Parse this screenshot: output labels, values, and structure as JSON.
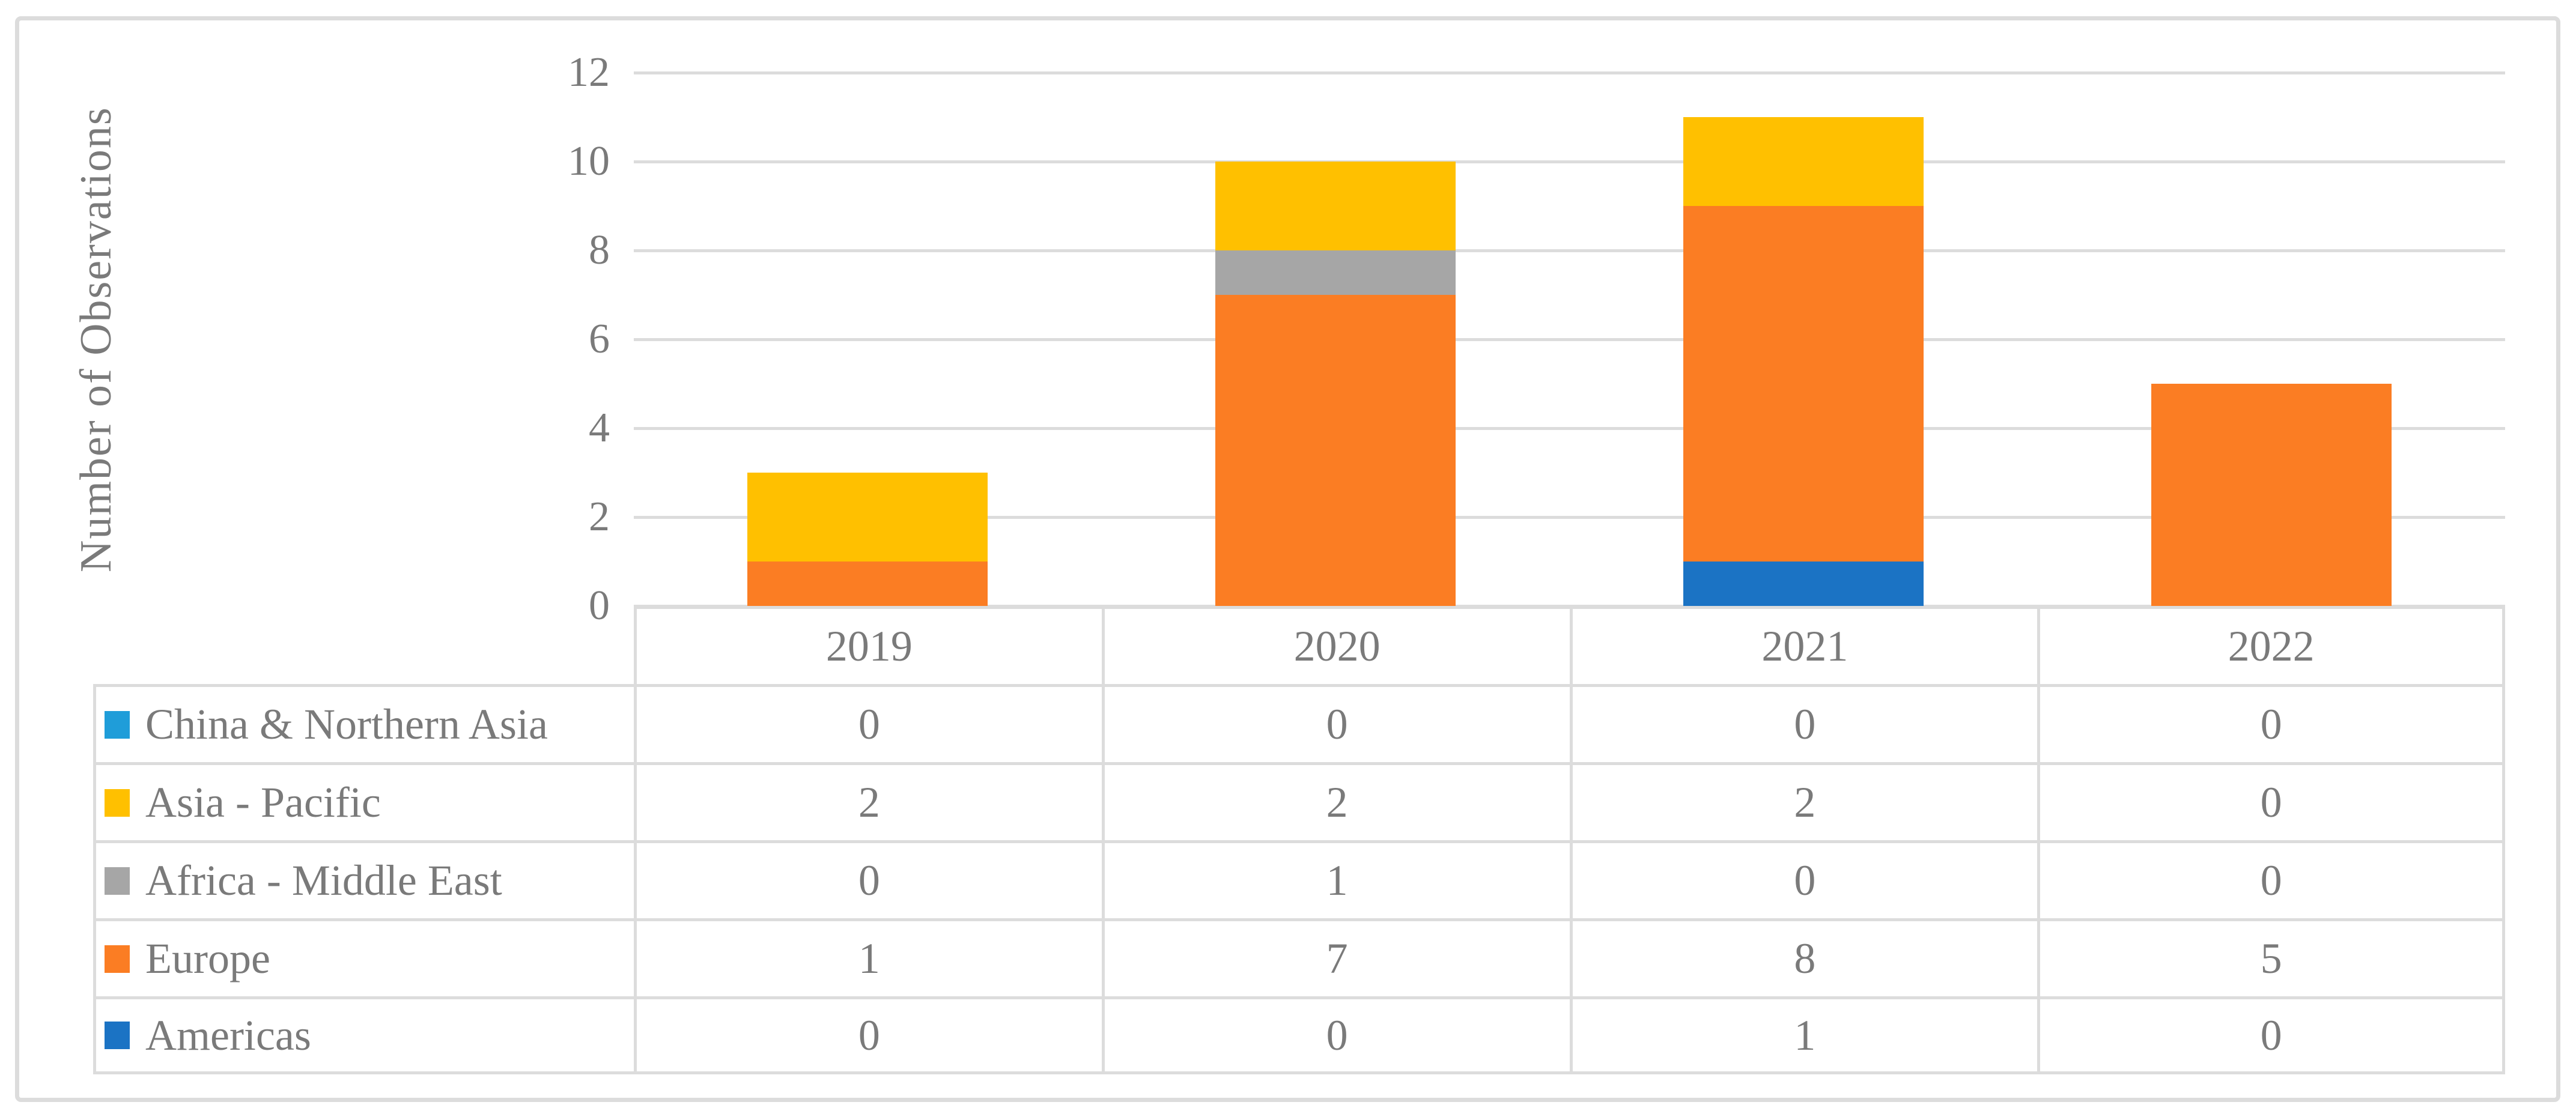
{
  "y_axis": {
    "title": "Number of Observations",
    "tick_labels": [
      "0",
      "2",
      "4",
      "6",
      "8",
      "10",
      "12"
    ],
    "min": 0,
    "max": 12,
    "step": 2
  },
  "colors": {
    "china_northern_asia": "#1F9DD9",
    "asia_pacific": "#FFC000",
    "africa_middle_east": "#A6A6A6",
    "europe": "#FB7D23",
    "americas": "#1B73C4",
    "gridline": "#DCDCDC",
    "frame_border": "#DCDCDC",
    "text": "#7A7A7A"
  },
  "chart_data": {
    "type": "bar",
    "stacked": true,
    "title": "",
    "xlabel": "",
    "ylabel": "Number of Observations",
    "ylim": [
      0,
      12
    ],
    "grid": true,
    "legend_position": "table-left",
    "categories": [
      "2019",
      "2020",
      "2021",
      "2022"
    ],
    "series": [
      {
        "name": "China & Northern Asia",
        "color": "#1F9DD9",
        "values": [
          0,
          0,
          0,
          0
        ]
      },
      {
        "name": "Asia - Pacific",
        "color": "#FFC000",
        "values": [
          2,
          2,
          2,
          0
        ]
      },
      {
        "name": "Africa - Middle East",
        "color": "#A6A6A6",
        "values": [
          0,
          1,
          0,
          0
        ]
      },
      {
        "name": "Europe",
        "color": "#FB7D23",
        "values": [
          1,
          7,
          8,
          5
        ]
      },
      {
        "name": "Americas",
        "color": "#1B73C4",
        "values": [
          0,
          0,
          1,
          0
        ]
      }
    ]
  }
}
